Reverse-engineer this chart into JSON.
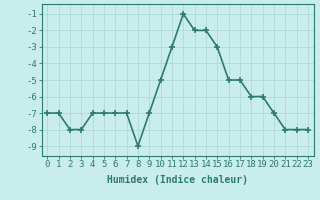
{
  "x": [
    0,
    1,
    2,
    3,
    4,
    5,
    6,
    7,
    8,
    9,
    10,
    11,
    12,
    13,
    14,
    15,
    16,
    17,
    18,
    19,
    20,
    21,
    22,
    23
  ],
  "y": [
    -7,
    -7,
    -8,
    -8,
    -7,
    -7,
    -7,
    -7,
    -9,
    -7,
    -5,
    -3,
    -1,
    -2,
    -2,
    -3,
    -5,
    -5,
    -6,
    -6,
    -7,
    -8,
    -8,
    -8
  ],
  "line_color": "#2d7a6e",
  "marker": "+",
  "marker_size": 4,
  "marker_color": "#2d7a6e",
  "bg_color": "#c9eded",
  "grid_color": "#b0d8d8",
  "xlabel": "Humidex (Indice chaleur)",
  "xlabel_fontsize": 7,
  "ylabel_ticks": [
    -1,
    -2,
    -3,
    -4,
    -5,
    -6,
    -7,
    -8,
    -9
  ],
  "xlim": [
    -0.5,
    23.5
  ],
  "ylim": [
    -9.6,
    -0.4
  ],
  "tick_fontsize": 6.5,
  "line_width": 1.2
}
